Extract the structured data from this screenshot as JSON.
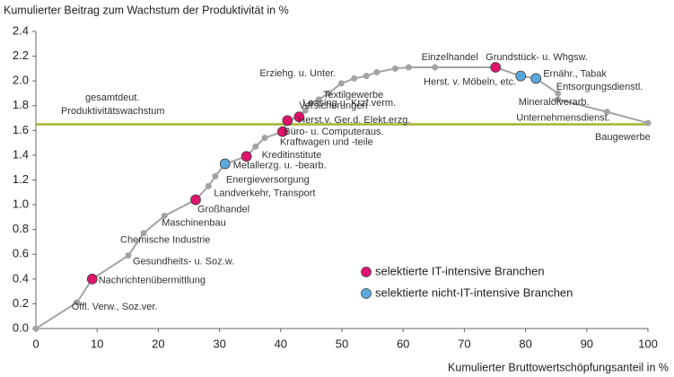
{
  "chart_data": {
    "type": "scatter",
    "ylabel": "Kumulierter Beitrag zum Wachstum der Produktivität in %",
    "xlabel": "Kumulierter Bruttowertschöpfungsanteil in %",
    "xlim": [
      0,
      100
    ],
    "xticks": [
      0,
      10,
      20,
      30,
      40,
      50,
      60,
      70,
      80,
      90,
      100
    ],
    "ylim": [
      0,
      2.4
    ],
    "yticks": [
      {
        "value": 0,
        "label": "0.0"
      },
      0.2,
      0.4,
      0.6,
      0.8,
      {
        "value": 1,
        "label": "1.0"
      },
      1.2,
      1.4,
      1.6,
      1.8,
      {
        "value": 2,
        "label": "2.0"
      },
      2.2,
      2.4
    ],
    "color": "#a3a3a3",
    "x": [
      0,
      6.7,
      9.2,
      15.1,
      17.6,
      21,
      26.1,
      28.2,
      29.3,
      30.9,
      34.4,
      35.9,
      37.4,
      40.3,
      41.1,
      43,
      44,
      44.9,
      46.2,
      47.8,
      49.9,
      52,
      54,
      55.7,
      58.7,
      60.9,
      65.2,
      75.1,
      79.2,
      81.7,
      85.3,
      85.3,
      93.3,
      100
    ],
    "values": [
      0,
      0.21,
      0.4,
      0.59,
      0.77,
      0.91,
      1.04,
      1.15,
      1.23,
      1.33,
      1.39,
      1.47,
      1.54,
      1.59,
      1.68,
      1.71,
      1.76,
      1.82,
      1.85,
      1.9,
      1.98,
      2.02,
      2.04,
      2.07,
      2.1,
      2.11,
      2.11,
      2.11,
      2.04,
      2.02,
      1.9,
      1.85,
      1.75,
      1.66
    ],
    "point_labels": [
      null,
      "Öffl. Verw., Soz.ver.",
      "Nachrichtenübermittlung",
      "Gesundheits- u. Soz.w.",
      "Chemische Industrie",
      "Maschinenbau",
      "Großhandel",
      "Landverkehr, Transport",
      "Energieversorgung",
      "Metallerzg. u. -bearb.",
      "Kreditinstitute",
      null,
      null,
      "Kraftwagen und -teile",
      "Büro- u. Computeraus.",
      "Herst.v. Ger.d. Elekt.erzg.",
      "Versicherungen",
      "Leasing u. Krzf.verm.",
      null,
      "Textilgewerbe",
      "Erziehg. u. Unter.",
      null,
      null,
      null,
      null,
      null,
      "Einzelhandel",
      "Grundstück- u. Whgsw.",
      "Herst. v. Möbeln, etc.",
      "Ernähr., Tabak",
      "Entsorgungsdienstl.",
      "Mineralölverarb.",
      "Unternehmensdienst.",
      "Baugewerbe"
    ],
    "point_groups": [
      null,
      null,
      0,
      null,
      null,
      null,
      0,
      null,
      null,
      1,
      0,
      null,
      null,
      0,
      0,
      0,
      null,
      null,
      null,
      null,
      null,
      null,
      null,
      null,
      null,
      null,
      null,
      0,
      1,
      1,
      null,
      null,
      null,
      null
    ],
    "legend": [
      {
        "name": "selektierte IT-intensive Branchen",
        "color": "#e0136c",
        "label_color": "#d0105a"
      },
      {
        "name": "selektierte nicht-IT-intensive Branchen",
        "color": "#5aa8dc",
        "label_color": "#2a7fc0"
      }
    ],
    "reference_line": {
      "value": 1.65,
      "color": "#a5b332",
      "label": [
        "gesamtdeut.",
        "Produktivitätswachstum"
      ]
    }
  }
}
